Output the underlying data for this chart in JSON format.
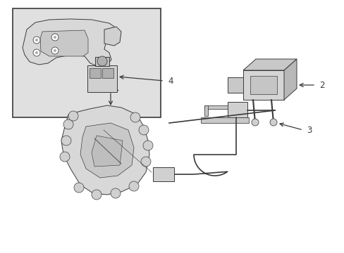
{
  "bg": "#ffffff",
  "lc": "#3a3a3a",
  "lw": 0.7,
  "fill_light": "#e0e0e0",
  "fill_mid": "#cccccc",
  "fill_dark": "#b0b0b0",
  "box_bg": "#e8e8e8",
  "box_border": "#3a3a3a",
  "inset_bg": "#e0e0e0",
  "label_fs": 8.5,
  "figsize": [
    4.89,
    3.6
  ],
  "dpi": 100
}
